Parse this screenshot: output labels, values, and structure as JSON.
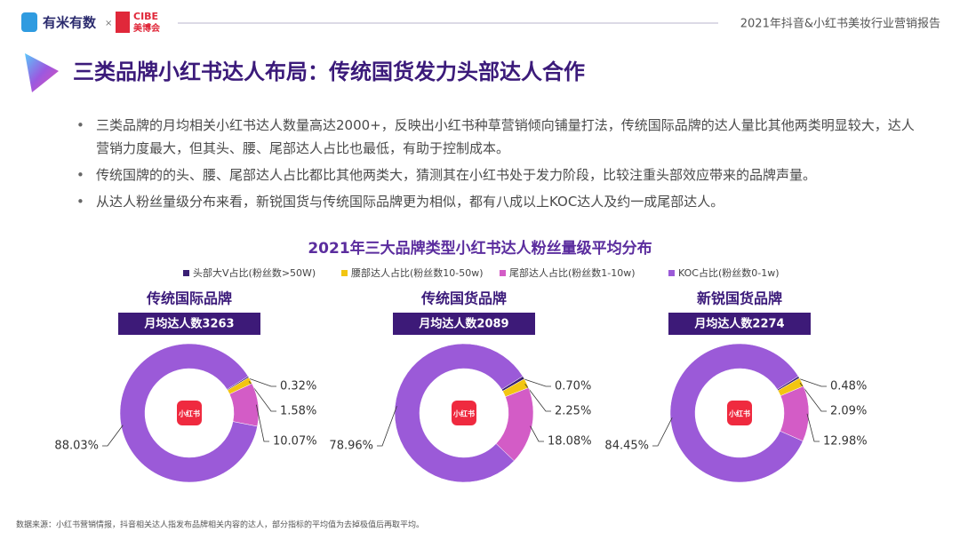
{
  "header": {
    "brand": "有米有数",
    "cross": "×",
    "partner_top": "CIBE",
    "partner_bottom": "美博会",
    "report": "2021年抖音&小红书美妆行业营销报告"
  },
  "title": "三类品牌小红书达人布局：传统国货发力头部达人合作",
  "bullets": [
    "三类品牌的月均相关小红书达人数量高达2000+，反映出小红书种草营销倾向铺量打法，传统国际品牌的达人量比其他两类明显较大，达人营销力度最大，但其头、腰、尾部达人占比也最低，有助于控制成本。",
    "传统国牌的的头、腰、尾部达人占比都比其他两类大，猜测其在小红书处于发力阶段，比较注重头部效应带来的品牌声量。",
    "从达人粉丝量级分布来看，新锐国货与传统国际品牌更为相似，都有八成以上KOC达人及约一成尾部达人。"
  ],
  "chart_title": "2021年三大品牌类型小红书达人粉丝量级平均分布",
  "legend": {
    "categories": [
      "头部大V占比(粉丝数>50W)",
      "腰部达人占比(粉丝数10-50w)",
      "尾部达人占比(粉丝数1-10w)",
      "KOC占比(粉丝数0-1w)"
    ],
    "colors": [
      "#3a1f74",
      "#f2c511",
      "#d35cc6",
      "#9b5ad8"
    ]
  },
  "chart_data": [
    {
      "type": "pie",
      "title": "传统国际品牌",
      "subtitle": "月均达人数3263",
      "center_label": "小红书",
      "values": [
        0.32,
        1.58,
        10.07,
        88.03
      ],
      "value_labels": [
        "0.32%",
        "1.58%",
        "10.07%",
        "88.03%"
      ]
    },
    {
      "type": "pie",
      "title": "传统国货品牌",
      "subtitle": "月均达人数2089",
      "center_label": "小红书",
      "values": [
        0.7,
        2.25,
        18.08,
        78.96
      ],
      "value_labels": [
        "0.70%",
        "2.25%",
        "18.08%",
        "78.96%"
      ]
    },
    {
      "type": "pie",
      "title": "新锐国货品牌",
      "subtitle": "月均达人数2274",
      "center_label": "小红书",
      "values": [
        0.48,
        2.09,
        12.98,
        84.45
      ],
      "value_labels": [
        "0.48%",
        "2.09%",
        "12.98%",
        "84.45%"
      ]
    }
  ],
  "source": "数据来源：小红书营销情报，抖音相关达人指发布品牌相关内容的达人，部分指标的平均值为去掉极值后再取平均。"
}
